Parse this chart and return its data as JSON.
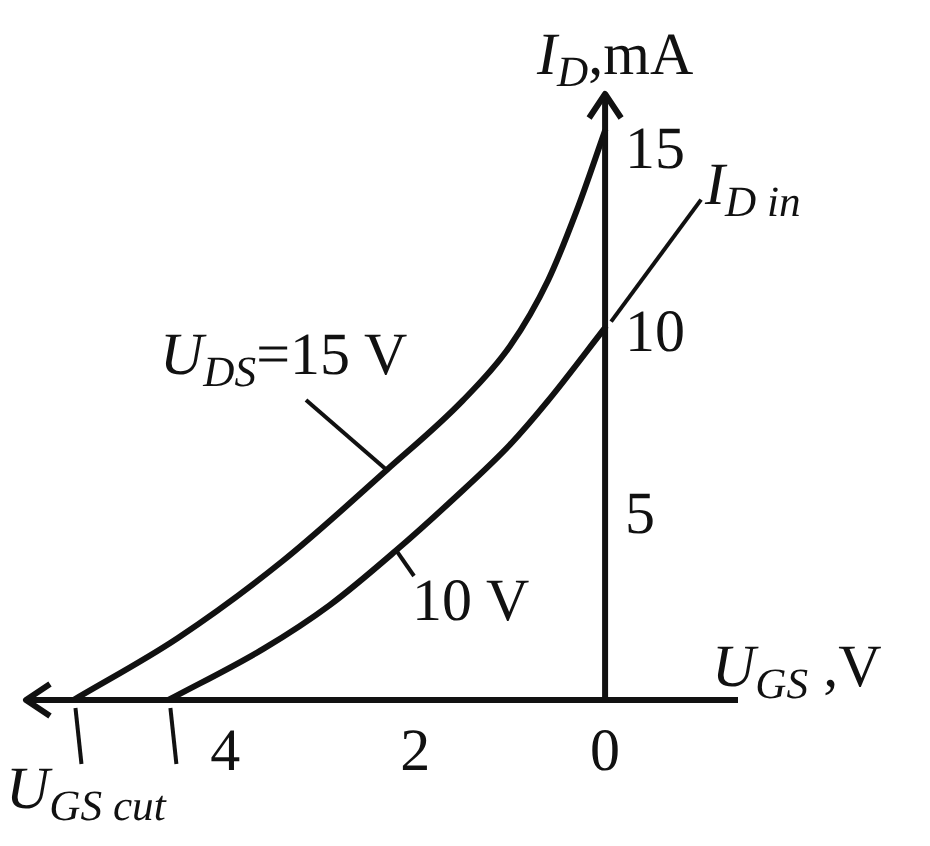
{
  "chart_data": {
    "type": "line",
    "xlabel": "U$_{GS}$ ,V",
    "ylabel": "I$_{D}$,mA",
    "annotations": [
      {
        "text": "I$_{D in}$",
        "x": 0,
        "y": 10.2
      },
      "U$_{GS cut}$"
    ],
    "xlim": [
      6.1,
      -1.4
    ],
    "xticks": [
      4,
      2,
      0
    ],
    "ylim": [
      0,
      16.6
    ],
    "yticks": [
      5,
      10,
      15
    ],
    "series": [
      {
        "name": "U$_{DS}$=15 V",
        "color": "#111111",
        "x": [
          5.6,
          4.5,
          3.4,
          2.3,
          1.5,
          1.0,
          0.6,
          0.3,
          0
        ],
        "values": [
          0,
          1.7,
          3.8,
          6.3,
          8.2,
          9.7,
          11.5,
          13.4,
          15.6
        ]
      },
      {
        "name": "10 V",
        "color": "#111111",
        "x": [
          4.6,
          3.6,
          2.9,
          2.2,
          1.6,
          1.0,
          0.6,
          0
        ],
        "values": [
          0,
          1.4,
          2.6,
          4.1,
          5.5,
          7.0,
          8.2,
          10.2
        ]
      }
    ]
  }
}
